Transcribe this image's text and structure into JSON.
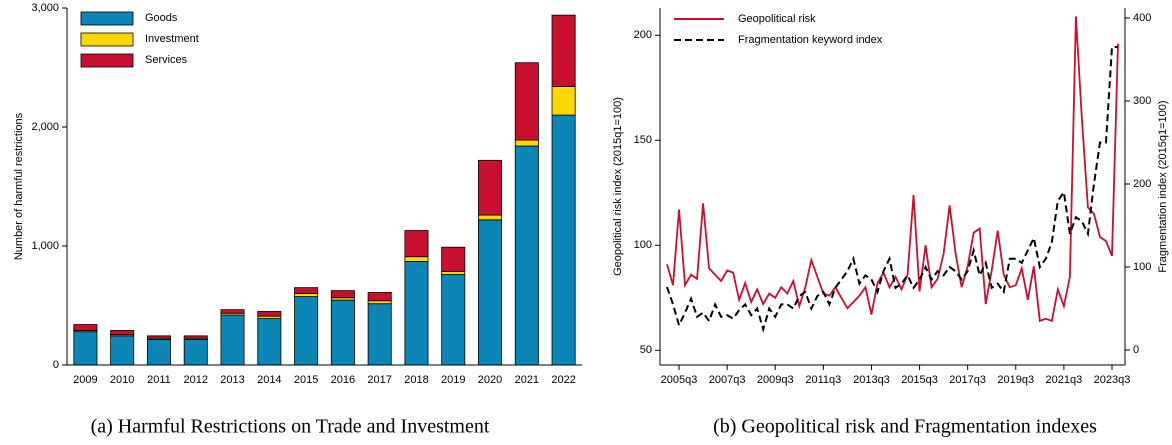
{
  "chart_data": [
    {
      "type": "bar",
      "stacked": true,
      "ylabel": "Number of harmful restrictions",
      "caption": "(a)  Harmful Restrictions on Trade and Investment",
      "categories": [
        "2009",
        "2010",
        "2011",
        "2012",
        "2013",
        "2014",
        "2015",
        "2016",
        "2017",
        "2018",
        "2019",
        "2020",
        "2021",
        "2022"
      ],
      "series": [
        {
          "name": "Goods",
          "color": "#0b86b6",
          "values": [
            280,
            245,
            215,
            215,
            420,
            390,
            575,
            545,
            515,
            870,
            760,
            1220,
            1840,
            2100
          ]
        },
        {
          "name": "Investment",
          "color": "#ffd700",
          "values": [
            10,
            10,
            10,
            10,
            15,
            20,
            25,
            20,
            25,
            40,
            25,
            40,
            50,
            240
          ]
        },
        {
          "name": "Services",
          "color": "#c8102e",
          "values": [
            50,
            35,
            20,
            20,
            30,
            40,
            50,
            60,
            70,
            220,
            205,
            460,
            650,
            600
          ]
        }
      ],
      "ylim": [
        0,
        3000
      ],
      "yticks": [
        0,
        {
          "value": 1000,
          "label": "1,000"
        },
        {
          "value": 2000,
          "label": "2,000"
        },
        {
          "value": 3000,
          "label": "3,000"
        }
      ],
      "legend": "top-left"
    },
    {
      "type": "line",
      "ylabel": "Geopolitical risk index (2015q1=100)",
      "y2label": "Fragmentation index (2015q1=100)",
      "caption": "(b)  Geopolitical risk and Fragmentation indexes",
      "categories": [
        null,
        null,
        "2005q3",
        null,
        null,
        null,
        null,
        null,
        null,
        null,
        "2007q3",
        null,
        null,
        null,
        null,
        null,
        null,
        null,
        "2009q3",
        null,
        null,
        null,
        null,
        null,
        null,
        null,
        "2011q3",
        null,
        null,
        null,
        null,
        null,
        null,
        null,
        "2013q3",
        null,
        null,
        null,
        null,
        null,
        null,
        null,
        "2015q3",
        null,
        null,
        null,
        null,
        null,
        null,
        null,
        "2017q3",
        null,
        null,
        null,
        null,
        null,
        null,
        null,
        "2019q3",
        null,
        null,
        null,
        null,
        null,
        null,
        null,
        "2021q3",
        null,
        null,
        null,
        null,
        null,
        null,
        null,
        "2023q3",
        null
      ],
      "series": [
        {
          "name": "Geopolitical risk",
          "color": "#c8102e",
          "dash": false,
          "axis": "y",
          "values": [
            91,
            81,
            117,
            81,
            86,
            84,
            120,
            89,
            86,
            83,
            88,
            87,
            74,
            82,
            73,
            79,
            72,
            77,
            75,
            80,
            77,
            83,
            71,
            80,
            93,
            85,
            77,
            76,
            80,
            75,
            70,
            73,
            76,
            80,
            67,
            82,
            87,
            80,
            85,
            79,
            86,
            124,
            78,
            100,
            80,
            84,
            96,
            119,
            96,
            80,
            90,
            106,
            108,
            72,
            88,
            107,
            86,
            80,
            81,
            89,
            74,
            90,
            64,
            65,
            64,
            79,
            71,
            85,
            209,
            160,
            118,
            115,
            104,
            102,
            95,
            196
          ]
        },
        {
          "name": "Fragmentation keyword index",
          "color": "#000000",
          "dash": true,
          "axis": "y2",
          "values": [
            76,
            55,
            30,
            45,
            62,
            40,
            45,
            35,
            55,
            40,
            42,
            38,
            48,
            55,
            42,
            50,
            25,
            50,
            40,
            55,
            55,
            50,
            65,
            70,
            50,
            65,
            70,
            55,
            75,
            85,
            95,
            110,
            80,
            90,
            85,
            70,
            95,
            110,
            75,
            80,
            90,
            75,
            85,
            100,
            85,
            95,
            90,
            100,
            95,
            85,
            95,
            120,
            90,
            105,
            75,
            80,
            70,
            110,
            110,
            105,
            120,
            135,
            100,
            110,
            130,
            180,
            190,
            140,
            160,
            155,
            140,
            200,
            250,
            250,
            365,
            365
          ]
        }
      ],
      "ylim": [
        43,
        213
      ],
      "yticks": [
        50,
        100,
        150,
        200
      ],
      "y2lim": [
        -18,
        412
      ],
      "y2ticks": [
        0,
        100,
        200,
        300,
        400
      ],
      "legend": "top-left"
    }
  ]
}
